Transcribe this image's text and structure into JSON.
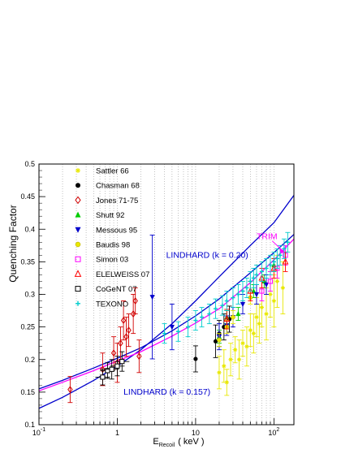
{
  "chart_data": {
    "type": "scatter",
    "title": "",
    "xlabel_main": "E",
    "xlabel_sub": "Recoil",
    "xlabel_unit": "( keV )",
    "ylabel": "Quenching Factor",
    "xscale": "log",
    "xlim": [
      0.1,
      180
    ],
    "ylim": [
      0.1,
      0.5
    ],
    "grid": "vertical dotted lines at decades",
    "legend_placement": "top-left",
    "x_ticks": [
      {
        "label": "10",
        "exp": "-1",
        "value": 0.1
      },
      {
        "label": "1",
        "exp": "",
        "value": 1
      },
      {
        "label": "10",
        "exp": "",
        "value": 10
      },
      {
        "label": "10",
        "exp": "2",
        "value": 100
      }
    ],
    "y_ticks": [
      "0.1",
      "0.15",
      "0.2",
      "0.25",
      "0.3",
      "0.35",
      "0.4",
      "0.45",
      "0.5"
    ],
    "annotations": [
      {
        "text": "LINDHARD (k = 0.20)",
        "color": "#0000cc",
        "x": 4.2,
        "y": 0.356
      },
      {
        "text": "LINDHARD (k = 0.157)",
        "color": "#0000cc",
        "x": 1.2,
        "y": 0.146
      },
      {
        "text": "TRIM",
        "color": "#ff00ff",
        "x": 60,
        "y": 0.385
      }
    ],
    "curves": [
      {
        "label": "LINDHARD (k = 0.20)",
        "color": "#0000cc",
        "x": [
          0.1,
          0.2,
          0.5,
          1,
          2,
          5,
          10,
          20,
          50,
          100,
          180
        ],
        "y": [
          0.125,
          0.142,
          0.168,
          0.19,
          0.215,
          0.255,
          0.29,
          0.327,
          0.375,
          0.41,
          0.452
        ]
      },
      {
        "label": "LINDHARD (k = 0.157)",
        "color": "#0000cc",
        "x": [
          0.1,
          0.2,
          0.5,
          1,
          2,
          5,
          10,
          20,
          50,
          100,
          180
        ],
        "y": [
          0.155,
          0.168,
          0.187,
          0.202,
          0.218,
          0.244,
          0.267,
          0.293,
          0.333,
          0.364,
          0.392
        ]
      },
      {
        "label": "TRIM",
        "color": "#ff00ff",
        "x": [
          0.1,
          0.2,
          0.5,
          1,
          2,
          5,
          10,
          20,
          50,
          100,
          180
        ],
        "y": [
          0.152,
          0.165,
          0.183,
          0.198,
          0.212,
          0.236,
          0.256,
          0.278,
          0.318,
          0.353,
          0.385
        ]
      }
    ],
    "series": [
      {
        "name": "Sattler 66",
        "color": "#e8e800",
        "marker": "star",
        "points": [
          [
            20,
            0.18,
            0.025
          ],
          [
            23,
            0.19,
            0.025
          ],
          [
            25,
            0.165,
            0.02
          ],
          [
            28,
            0.2,
            0.025
          ],
          [
            32,
            0.215,
            0.02
          ],
          [
            36,
            0.2,
            0.03
          ],
          [
            40,
            0.225,
            0.02
          ],
          [
            45,
            0.22,
            0.03
          ],
          [
            50,
            0.245,
            0.025
          ],
          [
            55,
            0.24,
            0.03
          ],
          [
            60,
            0.265,
            0.03
          ],
          [
            65,
            0.255,
            0.03
          ],
          [
            70,
            0.28,
            0.03
          ],
          [
            80,
            0.27,
            0.04
          ],
          [
            90,
            0.3,
            0.035
          ],
          [
            100,
            0.29,
            0.04
          ],
          [
            110,
            0.32,
            0.04
          ],
          [
            130,
            0.31,
            0.04
          ]
        ]
      },
      {
        "name": "Chasman 68",
        "color": "#000000",
        "marker": "dot",
        "points": [
          [
            10,
            0.201,
            0.02
          ],
          [
            18,
            0.228,
            0.025
          ],
          [
            20,
            0.24,
            0.02
          ],
          [
            23,
            0.25,
            0.02
          ],
          [
            27,
            0.262,
            0.02
          ]
        ]
      },
      {
        "name": "Jones 71-75",
        "color": "#d10000",
        "marker": "diamond",
        "points": [
          [
            0.25,
            0.154,
            0.02
          ],
          [
            0.65,
            0.185,
            0.025
          ],
          [
            0.9,
            0.21,
            0.025
          ],
          [
            1.0,
            0.195,
            0.03
          ],
          [
            1.1,
            0.225,
            0.025
          ],
          [
            1.2,
            0.26,
            0.03
          ],
          [
            1.3,
            0.235,
            0.03
          ],
          [
            1.4,
            0.245,
            0.025
          ],
          [
            1.6,
            0.27,
            0.03
          ],
          [
            1.7,
            0.29,
            0.02
          ],
          [
            1.9,
            0.205,
            0.025
          ]
        ]
      },
      {
        "name": "Shutt 92",
        "color": "#00cc00",
        "marker": "triangle",
        "points": [
          [
            20,
            0.235,
            0.01
          ],
          [
            25,
            0.265,
            0.01
          ],
          [
            35,
            0.27,
            0.01
          ],
          [
            55,
            0.305,
            0.01
          ],
          [
            75,
            0.32,
            0.01
          ],
          [
            100,
            0.345,
            0.01
          ]
        ]
      },
      {
        "name": "Messous 95",
        "color": "#0000cc",
        "marker": "down-triangle",
        "points": [
          [
            2.8,
            0.296,
            0.095
          ],
          [
            5.0,
            0.25,
            0.035
          ],
          [
            20,
            0.235,
            0.02
          ],
          [
            25,
            0.252,
            0.015
          ],
          [
            30,
            0.265,
            0.015
          ],
          [
            40,
            0.285,
            0.015
          ],
          [
            60,
            0.3,
            0.015
          ],
          [
            80,
            0.315,
            0.015
          ]
        ]
      },
      {
        "name": "Baudis 98",
        "color": "#e8e800",
        "marker": "circle",
        "points": [
          [
            20,
            0.23,
            0.01
          ],
          [
            25,
            0.25,
            0.01
          ],
          [
            30,
            0.265,
            0.01
          ],
          [
            50,
            0.295,
            0.01
          ]
        ]
      },
      {
        "name": "Simon 03",
        "color": "#ff00ff",
        "marker": "square",
        "points": [
          [
            70,
            0.305,
            0.015
          ],
          [
            90,
            0.32,
            0.015
          ],
          [
            110,
            0.34,
            0.015
          ],
          [
            140,
            0.36,
            0.015
          ]
        ]
      },
      {
        "name": "ELELWEISS 07",
        "color": "#ff0000",
        "marker": "open-triangle",
        "points": [
          [
            25,
            0.262,
            0.015
          ],
          [
            50,
            0.305,
            0.015
          ],
          [
            70,
            0.325,
            0.015
          ],
          [
            100,
            0.34,
            0.015
          ],
          [
            140,
            0.35,
            0.015
          ]
        ]
      },
      {
        "name": "CoGeNT 07",
        "color": "#000000",
        "marker": "open-square",
        "points": [
          [
            0.65,
            0.173,
            0.012
          ],
          [
            0.75,
            0.183,
            0.012
          ],
          [
            0.85,
            0.185,
            0.015
          ],
          [
            1.0,
            0.19,
            0.015
          ],
          [
            1.15,
            0.197,
            0.015
          ]
        ]
      },
      {
        "name": "TEXONO",
        "color": "#00cccc",
        "marker": "cross",
        "points": [
          [
            4,
            0.24,
            0.015
          ],
          [
            6,
            0.243,
            0.015
          ],
          [
            8,
            0.25,
            0.015
          ],
          [
            10,
            0.26,
            0.015
          ],
          [
            12,
            0.265,
            0.015
          ],
          [
            15,
            0.27,
            0.015
          ],
          [
            18,
            0.278,
            0.015
          ],
          [
            22,
            0.283,
            0.015
          ],
          [
            25,
            0.29,
            0.015
          ],
          [
            30,
            0.295,
            0.015
          ],
          [
            35,
            0.3,
            0.015
          ],
          [
            40,
            0.305,
            0.015
          ],
          [
            45,
            0.31,
            0.015
          ],
          [
            50,
            0.32,
            0.015
          ],
          [
            55,
            0.325,
            0.015
          ],
          [
            60,
            0.33,
            0.015
          ],
          [
            70,
            0.335,
            0.015
          ],
          [
            80,
            0.34,
            0.015
          ],
          [
            90,
            0.345,
            0.015
          ],
          [
            100,
            0.35,
            0.015
          ],
          [
            110,
            0.355,
            0.015
          ],
          [
            120,
            0.36,
            0.015
          ],
          [
            135,
            0.37,
            0.015
          ],
          [
            150,
            0.38,
            0.015
          ]
        ]
      }
    ]
  }
}
